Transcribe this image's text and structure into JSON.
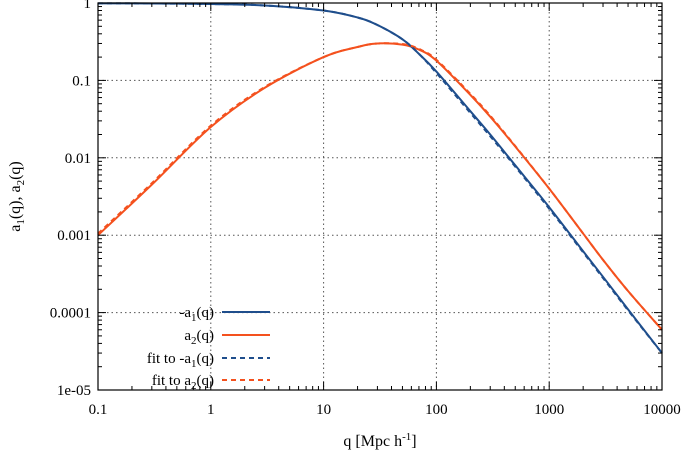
{
  "chart_data": {
    "type": "line",
    "x_scale": "log",
    "y_scale": "log",
    "xlim": [
      0.1,
      10000
    ],
    "ylim": [
      1e-05,
      1
    ],
    "grid": true,
    "legend_placement": "bottom-left",
    "xlabel": {
      "main": "q [Mpc h",
      "sup": "-1",
      "end": "]"
    },
    "ylabel": {
      "p1": "a",
      "s1": "1",
      "p2": "(q), a",
      "s2": "2",
      "p3": "(q)"
    },
    "x_ticks": [
      {
        "value": 0.1,
        "label": "0.1"
      },
      {
        "value": 1,
        "label": "1"
      },
      {
        "value": 10,
        "label": "10"
      },
      {
        "value": 100,
        "label": "100"
      },
      {
        "value": 1000,
        "label": "1000"
      },
      {
        "value": 10000,
        "label": "10000"
      }
    ],
    "y_ticks": [
      {
        "value": 1,
        "label": "1"
      },
      {
        "value": 0.1,
        "label": "0.1"
      },
      {
        "value": 0.01,
        "label": "0.01"
      },
      {
        "value": 0.001,
        "label": "0.001"
      },
      {
        "value": 0.0001,
        "label": "0.0001"
      },
      {
        "value": 1e-05,
        "label": "1e-05"
      }
    ],
    "colors": {
      "blue": "#1f4e8c",
      "orange": "#f4511e",
      "grid": "#555555"
    },
    "series": [
      {
        "name": {
          "pre": "-a",
          "sub": "1",
          "post": "(q)"
        },
        "style": "solid",
        "color": "#1f4e8c",
        "x": [
          0.1,
          0.3,
          1,
          3,
          10,
          20,
          30,
          50,
          70,
          100,
          200,
          300,
          500,
          1000,
          2000,
          3000,
          5000,
          10000
        ],
        "y": [
          0.99,
          0.985,
          0.97,
          0.93,
          0.8,
          0.65,
          0.52,
          0.34,
          0.22,
          0.13,
          0.04,
          0.02,
          0.008,
          0.0023,
          0.00062,
          0.00029,
          0.00011,
          3e-05
        ]
      },
      {
        "name": {
          "pre": "a",
          "sub": "2",
          "post": "(q)"
        },
        "style": "solid",
        "color": "#f4511e",
        "x": [
          0.1,
          0.3,
          1,
          3,
          10,
          20,
          30,
          50,
          70,
          100,
          200,
          300,
          500,
          1000,
          2000,
          3000,
          5000,
          10000
        ],
        "y": [
          0.001,
          0.0045,
          0.025,
          0.08,
          0.2,
          0.27,
          0.3,
          0.29,
          0.25,
          0.18,
          0.065,
          0.034,
          0.014,
          0.004,
          0.00105,
          0.00048,
          0.00019,
          6e-05
        ]
      },
      {
        "name": {
          "pre": "fit to -a",
          "sub": "1",
          "post": "(q)"
        },
        "style": "dashed",
        "color": "#1f4e8c",
        "x": [
          0.1,
          0.3,
          1,
          3,
          10,
          20,
          30,
          50,
          70,
          100,
          200,
          300,
          500,
          1000,
          2000,
          3000,
          5000,
          10000
        ],
        "y": [
          0.99,
          0.985,
          0.97,
          0.93,
          0.8,
          0.65,
          0.52,
          0.34,
          0.22,
          0.125,
          0.038,
          0.019,
          0.0077,
          0.0022,
          0.0006,
          0.00028,
          0.000107,
          3e-05
        ]
      },
      {
        "name": {
          "pre": "fit to a",
          "sub": "2",
          "post": "(q)"
        },
        "style": "dashed",
        "color": "#f4511e",
        "x": [
          0.1,
          0.3,
          1,
          3,
          10,
          20,
          30,
          50,
          70,
          100,
          200,
          300,
          500,
          1000,
          2000,
          3000,
          5000,
          10000
        ],
        "y": [
          0.00105,
          0.0047,
          0.026,
          0.082,
          0.2,
          0.27,
          0.3,
          0.295,
          0.255,
          0.185,
          0.067,
          0.035,
          0.0142,
          0.004,
          0.00105,
          0.00048,
          0.00019,
          6e-05
        ]
      }
    ]
  }
}
